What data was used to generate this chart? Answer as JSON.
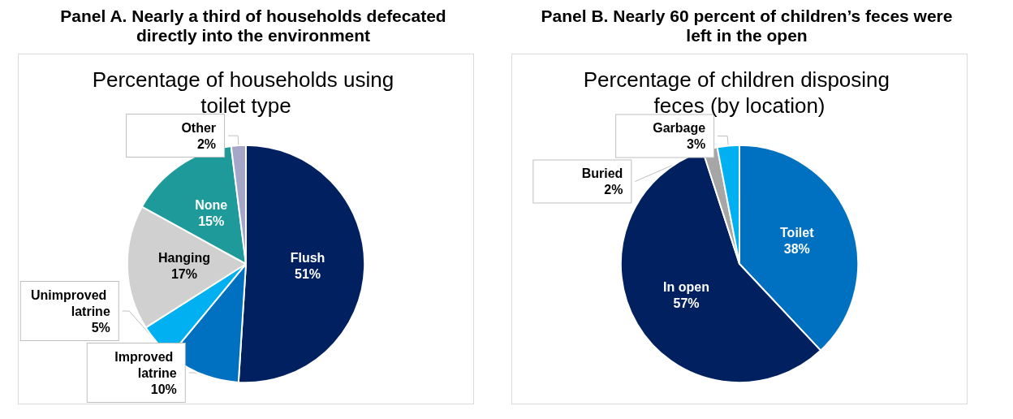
{
  "chart_data": [
    {
      "type": "pie",
      "title": "Panel A. Nearly a third of households defecated directly into the environment",
      "subtitle": "Percentage of households using toilet type",
      "categories": [
        "Flush",
        "Improved latrine",
        "Unimproved latrine",
        "Hanging",
        "None",
        "Other"
      ],
      "values": [
        51,
        10,
        5,
        17,
        15,
        2
      ],
      "value_labels": [
        "51%",
        "10%",
        "5%",
        "17%",
        "15%",
        "2%"
      ],
      "colors": [
        "#002060",
        "#0070c0",
        "#00b0f0",
        "#d0d0d0",
        "#1f9a9a",
        "#a6a6c8"
      ]
    },
    {
      "type": "pie",
      "title": "Panel B. Nearly 60 percent of children’s feces were left in the open",
      "subtitle": "Percentage of children disposing feces (by location)",
      "categories": [
        "Toilet",
        "In open",
        "Buried",
        "Garbage"
      ],
      "values": [
        38,
        57,
        2,
        3
      ],
      "value_labels": [
        "38%",
        "57%",
        "2%",
        "3%"
      ],
      "colors": [
        "#0070c0",
        "#002060",
        "#a6a6a6",
        "#00b0f0"
      ]
    }
  ]
}
